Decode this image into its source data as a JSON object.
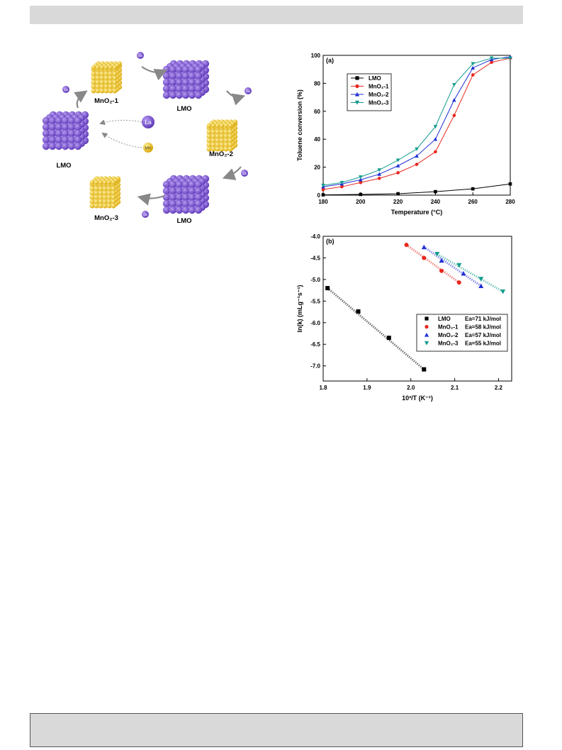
{
  "scheme": {
    "nodes": [
      {
        "id": "mno2-1-top",
        "label": "MnO₂-1",
        "kind": "yellow"
      },
      {
        "id": "lmo-top",
        "label": "LMO",
        "kind": "purple"
      },
      {
        "id": "mno2-2",
        "label": "MnO₂-2",
        "kind": "yellow"
      },
      {
        "id": "lmo-bottom",
        "label": "LMO",
        "kind": "purple"
      },
      {
        "id": "mno2-3",
        "label": "MnO₂-3",
        "kind": "yellow"
      },
      {
        "id": "lmo-left",
        "label": "LMO",
        "kind": "purple"
      }
    ],
    "ion_la": "La",
    "ion_mn": "Mn",
    "colors": {
      "la": "#7b4fcf",
      "mn": "#e6b800",
      "arrow": "#888888"
    }
  },
  "chart_data": [
    {
      "type": "line",
      "panel_label": "(a)",
      "xlabel": "Temperature (°C)",
      "ylabel": "Toluene conversion (%)",
      "xlim": [
        180,
        280
      ],
      "ylim": [
        0,
        100
      ],
      "xticks": [
        180,
        200,
        220,
        240,
        260,
        280
      ],
      "yticks": [
        0,
        20,
        40,
        60,
        80,
        100
      ],
      "legend_position": "top-left",
      "x": [
        180,
        190,
        200,
        210,
        220,
        230,
        240,
        250,
        260,
        270,
        280
      ],
      "series": [
        {
          "name": "LMO",
          "color": "#000000",
          "marker": "square",
          "x": [
            180,
            200,
            220,
            240,
            260,
            280
          ],
          "values": [
            0.2,
            0.5,
            1.0,
            2.5,
            4.5,
            8.0
          ]
        },
        {
          "name": "MnO₂-1",
          "color": "#e8281e",
          "marker": "circle",
          "values": [
            4,
            6,
            9,
            12,
            16,
            22,
            31,
            57,
            86,
            95,
            98
          ]
        },
        {
          "name": "MnO₂-2",
          "color": "#1f2fd6",
          "marker": "triangle-up",
          "values": [
            6,
            8,
            11,
            15,
            21,
            28,
            40,
            68,
            91,
            97,
            99
          ]
        },
        {
          "name": "MnO₂-3",
          "color": "#139c8c",
          "marker": "triangle-down",
          "values": [
            7,
            9,
            13,
            18,
            25,
            33,
            49,
            79,
            94,
            98,
            98
          ]
        }
      ]
    },
    {
      "type": "scatter",
      "panel_label": "(b)",
      "xlabel": "10³/T (K⁻¹)",
      "ylabel": "ln(k) (mLg⁻¹s⁻¹)",
      "xlim": [
        1.8,
        2.23
      ],
      "ylim": [
        -7.35,
        -4.0
      ],
      "xticks": [
        1.8,
        1.9,
        2.0,
        2.1,
        2.2
      ],
      "yticks": [
        -4.0,
        -4.5,
        -5.0,
        -5.5,
        -6.0,
        -6.5,
        -7.0
      ],
      "ytick_labels": [
        "-4.0",
        "-4.5",
        "-5.0",
        "-5.5",
        "-6.0",
        "-6.5",
        "-7.0"
      ],
      "xtick_labels": [
        "1.8",
        "1.9",
        "2.0",
        "2.1",
        "2.2"
      ],
      "legend_position": "bottom-right",
      "series": [
        {
          "name": "LMO",
          "ea": "Ea=71 kJ/mol",
          "color": "#000000",
          "marker": "square",
          "x": [
            1.81,
            1.88,
            1.95,
            2.03
          ],
          "values": [
            -5.2,
            -5.74,
            -6.35,
            -7.08
          ]
        },
        {
          "name": "MnO₂-1",
          "ea": "Ea=58 kJ/mol",
          "color": "#e8281e",
          "marker": "circle",
          "x": [
            1.99,
            2.03,
            2.07,
            2.11
          ],
          "values": [
            -4.2,
            -4.5,
            -4.8,
            -5.07
          ]
        },
        {
          "name": "MnO₂-2",
          "ea": "Ea=57 kJ/mol",
          "color": "#1f2fd6",
          "marker": "triangle-up",
          "x": [
            2.03,
            2.07,
            2.12,
            2.16
          ],
          "values": [
            -4.25,
            -4.56,
            -4.86,
            -5.15
          ]
        },
        {
          "name": "MnO₂-3",
          "ea": "Ea=55 kJ/mol",
          "color": "#139c8c",
          "marker": "triangle-down",
          "x": [
            2.06,
            2.11,
            2.16,
            2.21
          ],
          "values": [
            -4.41,
            -4.67,
            -4.99,
            -5.28
          ]
        }
      ]
    }
  ]
}
